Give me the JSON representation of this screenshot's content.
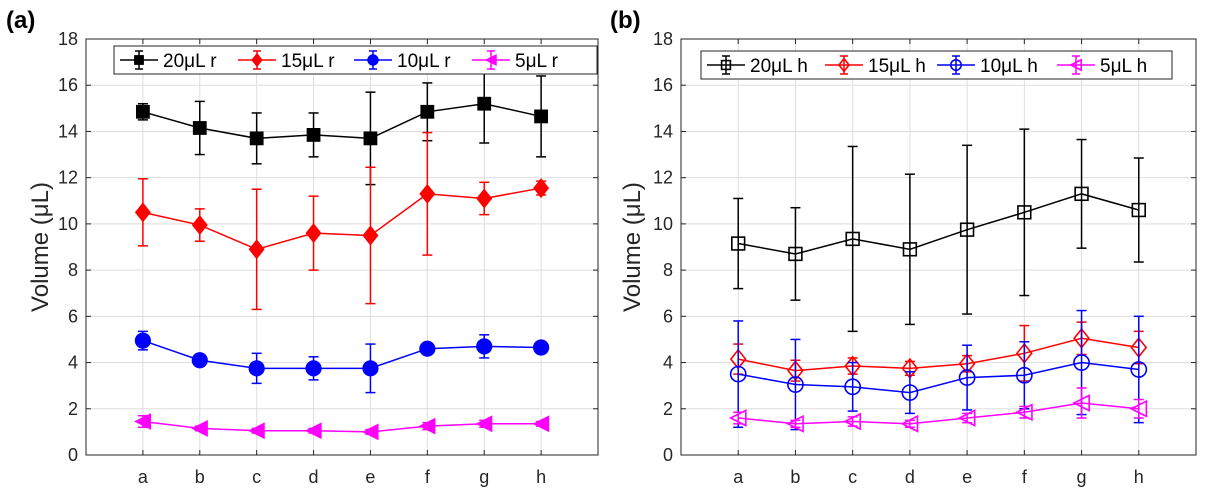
{
  "chart_data": [
    {
      "type": "line",
      "panel_label": "(a)",
      "ylabel": "Volume (μL)",
      "xlabel": "",
      "categories": [
        "a",
        "b",
        "c",
        "d",
        "e",
        "f",
        "g",
        "h"
      ],
      "ylim": [
        0,
        18
      ],
      "yticks": [
        "0",
        "2",
        "4",
        "6",
        "8",
        "10",
        "12",
        "14",
        "16",
        "18"
      ],
      "grid": true,
      "legend_position": "top",
      "series": [
        {
          "name": "20μL r",
          "color": "#000000",
          "marker": "square",
          "filled": true,
          "values": [
            14.85,
            14.15,
            13.7,
            13.85,
            13.7,
            14.85,
            15.2,
            14.65
          ],
          "err": [
            0.35,
            1.15,
            1.1,
            0.95,
            2.0,
            1.25,
            1.7,
            1.75
          ]
        },
        {
          "name": "15μL r",
          "color": "#ff0000",
          "marker": "diamond",
          "filled": true,
          "values": [
            10.5,
            9.95,
            8.9,
            9.6,
            9.5,
            11.3,
            11.1,
            11.55
          ],
          "err": [
            1.45,
            0.7,
            2.6,
            1.6,
            2.95,
            2.65,
            0.7,
            0.3
          ]
        },
        {
          "name": "10μL r",
          "color": "#0000ff",
          "marker": "circle",
          "filled": true,
          "values": [
            4.95,
            4.1,
            3.75,
            3.75,
            3.75,
            4.6,
            4.7,
            4.65
          ],
          "err": [
            0.4,
            0.25,
            0.65,
            0.5,
            1.05,
            0.2,
            0.5,
            0.2
          ]
        },
        {
          "name": "5μL r",
          "color": "#ff00ff",
          "marker": "triangle-left",
          "filled": true,
          "values": [
            1.45,
            1.15,
            1.05,
            1.05,
            1.0,
            1.25,
            1.35,
            1.35
          ],
          "err": [
            0.25,
            0.1,
            0.1,
            0.1,
            0.1,
            0.15,
            0.15,
            0.1
          ]
        }
      ]
    },
    {
      "type": "line",
      "panel_label": "(b)",
      "ylabel": "Volume (μL)",
      "xlabel": "",
      "categories": [
        "a",
        "b",
        "c",
        "d",
        "e",
        "f",
        "g",
        "h"
      ],
      "ylim": [
        0,
        18
      ],
      "yticks": [
        "0",
        "2",
        "4",
        "6",
        "8",
        "10",
        "12",
        "14",
        "16",
        "18"
      ],
      "grid": true,
      "legend_position": "top",
      "series": [
        {
          "name": "20μL h",
          "color": "#000000",
          "marker": "square",
          "filled": false,
          "values": [
            9.15,
            8.7,
            9.35,
            8.9,
            9.75,
            10.5,
            11.3,
            10.6
          ],
          "err": [
            1.95,
            2.0,
            4.0,
            3.25,
            3.65,
            3.6,
            2.35,
            2.25
          ]
        },
        {
          "name": "15μL h",
          "color": "#ff0000",
          "marker": "diamond",
          "filled": false,
          "values": [
            4.15,
            3.65,
            3.85,
            3.75,
            3.95,
            4.4,
            5.05,
            4.65
          ],
          "err": [
            0.65,
            0.45,
            0.35,
            0.3,
            0.35,
            1.2,
            0.7,
            0.7
          ]
        },
        {
          "name": "10μL h",
          "color": "#0000ff",
          "marker": "circle",
          "filled": false,
          "values": [
            3.5,
            3.05,
            2.95,
            2.7,
            3.35,
            3.45,
            4.0,
            3.7
          ],
          "err": [
            2.3,
            1.95,
            1.05,
            0.9,
            1.4,
            1.45,
            2.25,
            2.3
          ]
        },
        {
          "name": "5μL h",
          "color": "#ff00ff",
          "marker": "triangle-left",
          "filled": false,
          "values": [
            1.6,
            1.35,
            1.45,
            1.35,
            1.6,
            1.85,
            2.25,
            2.0
          ],
          "err": [
            0.25,
            0.15,
            0.2,
            0.15,
            0.2,
            0.25,
            0.65,
            0.4
          ]
        }
      ]
    }
  ]
}
